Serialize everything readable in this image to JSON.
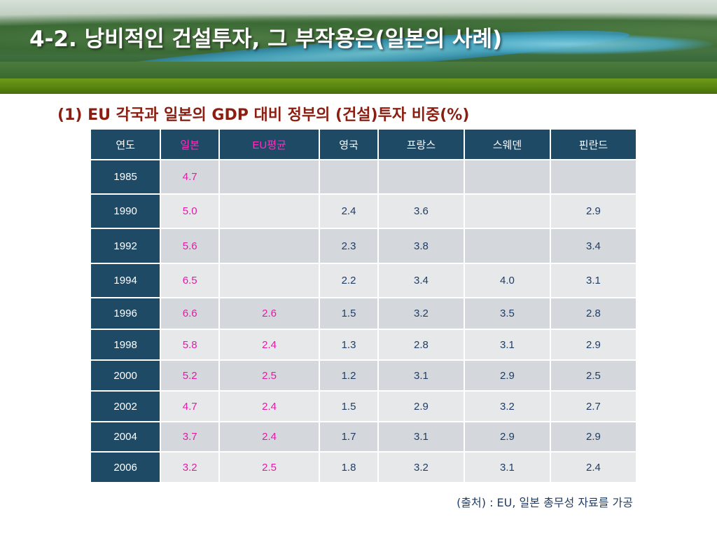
{
  "header": {
    "title": "4-2. 낭비적인 건설투자, 그 부작용은(일본의 사례)"
  },
  "subtitle": {
    "text": "(1) EU 각국과 일본의 GDP 대비 정부의 (건설)투자 비중(%)"
  },
  "table": {
    "headers": [
      "연도",
      "일본",
      "EU평균",
      "영국",
      "프랑스",
      "스웨덴",
      "핀란드"
    ],
    "rows": [
      {
        "year": "1985",
        "values": [
          "4.7",
          "",
          "",
          "",
          "",
          ""
        ]
      },
      {
        "year": "1990",
        "values": [
          "5.0",
          "",
          "2.4",
          "3.6",
          "",
          "2.9"
        ]
      },
      {
        "year": "1992",
        "values": [
          "5.6",
          "",
          "2.3",
          "3.8",
          "",
          "3.4"
        ]
      },
      {
        "year": "1994",
        "values": [
          "6.5",
          "",
          "2.2",
          "3.4",
          "4.0",
          "3.1"
        ]
      },
      {
        "year": "1996",
        "values": [
          "6.6",
          "2.6",
          "1.5",
          "3.2",
          "3.5",
          "2.8"
        ]
      },
      {
        "year": "1998",
        "values": [
          "5.8",
          "2.4",
          "1.3",
          "2.8",
          "3.1",
          "2.9"
        ]
      },
      {
        "year": "2000",
        "values": [
          "5.2",
          "2.5",
          "1.2",
          "3.1",
          "2.9",
          "2.5"
        ]
      },
      {
        "year": "2002",
        "values": [
          "4.7",
          "2.4",
          "1.5",
          "2.9",
          "3.2",
          "2.7"
        ]
      },
      {
        "year": "2004",
        "values": [
          "3.7",
          "2.4",
          "1.7",
          "3.1",
          "2.9",
          "2.9"
        ]
      },
      {
        "year": "2006",
        "values": [
          "3.2",
          "2.5",
          "1.8",
          "3.2",
          "3.1",
          "2.4"
        ]
      }
    ]
  },
  "source": {
    "text": "(출처) : EU, 일본 총무성 자료를 가공"
  },
  "colors": {
    "header_bg": "#1f4a66",
    "highlight": "#e11ca6",
    "title_red": "#8b1e10",
    "banner_green": "#5a8510"
  }
}
